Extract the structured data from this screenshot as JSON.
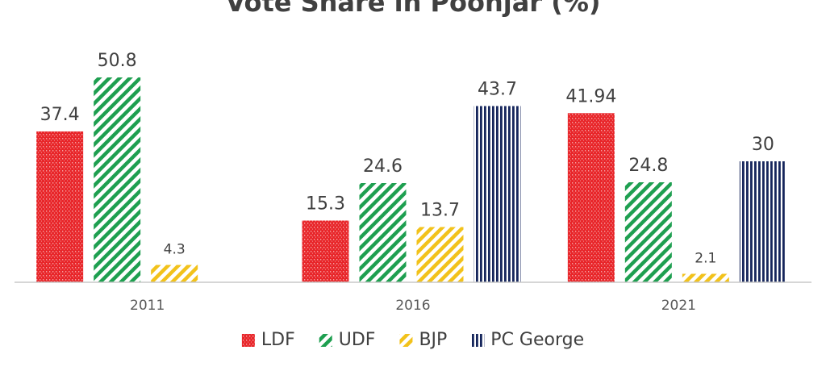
{
  "chart_data": {
    "type": "bar",
    "title": "Vote Share in Poonjar (%)",
    "categories": [
      "2011",
      "2016",
      "2021"
    ],
    "series": [
      {
        "name": "LDF",
        "color": "#e8262a",
        "pattern": "dots",
        "values": [
          37.4,
          15.3,
          41.94
        ],
        "labels": [
          "37.4",
          "15.3",
          "41.94"
        ]
      },
      {
        "name": "UDF",
        "color": "#1e9f50",
        "pattern": "diag-wide",
        "values": [
          50.8,
          24.6,
          24.8
        ],
        "labels": [
          "50.8",
          "24.6",
          "24.8"
        ]
      },
      {
        "name": "BJP",
        "color": "#f2c21b",
        "pattern": "diag-wide",
        "values": [
          4.3,
          13.7,
          2.1
        ],
        "labels": [
          "4.3",
          "13.7",
          "2.1"
        ]
      },
      {
        "name": "PC George",
        "color": "#16265c",
        "pattern": "vertical",
        "values": [
          null,
          43.7,
          30
        ],
        "labels": [
          null,
          "43.7",
          "30"
        ]
      }
    ],
    "ylim": [
      0,
      54
    ],
    "xlabel": "",
    "ylabel": "",
    "grid": false,
    "legend_position": "bottom"
  }
}
